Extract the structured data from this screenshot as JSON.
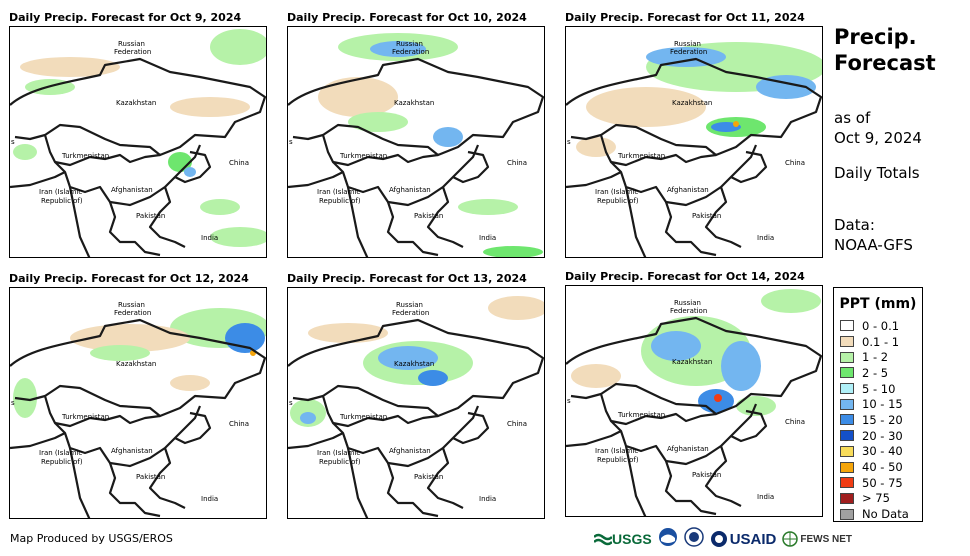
{
  "panels": [
    {
      "title": "Daily Precip. Forecast for Oct 9, 2024"
    },
    {
      "title": "Daily Precip. Forecast for Oct 10, 2024"
    },
    {
      "title": "Daily Precip. Forecast for Oct 11, 2024"
    },
    {
      "title": "Daily Precip. Forecast for Oct 12, 2024"
    },
    {
      "title": "Daily Precip. Forecast for Oct 13, 2024"
    },
    {
      "title": "Daily Precip. Forecast for Oct 14, 2024"
    }
  ],
  "map_labels": {
    "russia_1": "Russian",
    "russia_2": "Federation",
    "kazakhstan": "Kazakhstan",
    "turkmenistan": "Turkmenistan",
    "china": "China",
    "iran_1": "Iran  (Islamic",
    "iran_2": "Republic of)",
    "afghanistan": "Afghanistan",
    "pakistan": "Pakistan",
    "india": "India",
    "edge_s": "s"
  },
  "side": {
    "title_1": "Precip.",
    "title_2": "Forecast",
    "asof_1": "as of",
    "asof_2": "Oct 9, 2024",
    "totals": "Daily Totals",
    "data_1": "Data:",
    "data_2": "NOAA-GFS"
  },
  "legend": {
    "title": "PPT (mm)",
    "items": [
      {
        "label": "0 - 0.1",
        "color": "#ffffff"
      },
      {
        "label": "0.1 - 1",
        "color": "#f2dcbb"
      },
      {
        "label": "1 - 2",
        "color": "#b6f2a8"
      },
      {
        "label": "2 - 5",
        "color": "#6ee66e"
      },
      {
        "label": "5 - 10",
        "color": "#b0f0f8"
      },
      {
        "label": "10 - 15",
        "color": "#73b6f0"
      },
      {
        "label": "15 - 20",
        "color": "#3c8ce6"
      },
      {
        "label": "20 - 30",
        "color": "#1450c8"
      },
      {
        "label": "30 - 40",
        "color": "#f8dc5a"
      },
      {
        "label": "40 - 50",
        "color": "#f5a50a"
      },
      {
        "label": "50 - 75",
        "color": "#f03c14"
      },
      {
        "label": "> 75",
        "color": "#a01e1e"
      },
      {
        "label": "No Data",
        "color": "#a0a0a0"
      }
    ]
  },
  "footer": {
    "credit": "Map Produced by USGS/EROS"
  },
  "logos": {
    "usgs": "USGS",
    "usaid": "USAID",
    "fews": "FEWS NET"
  }
}
